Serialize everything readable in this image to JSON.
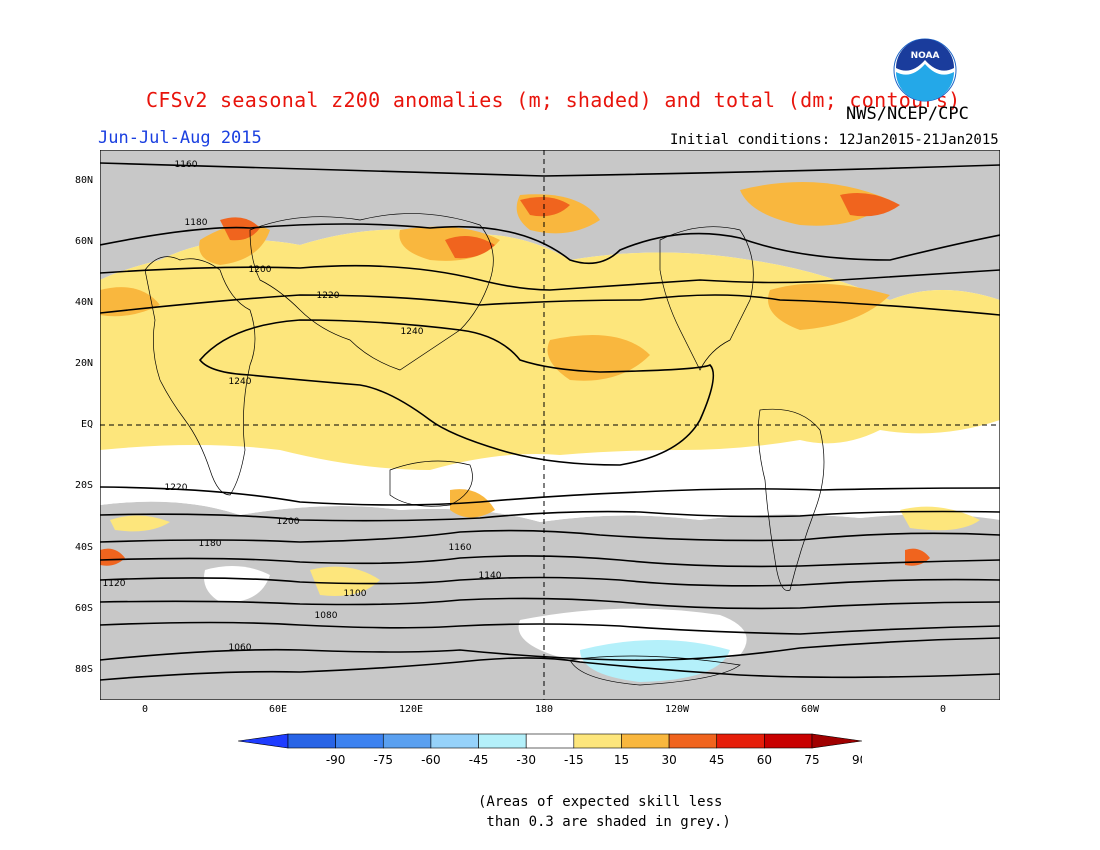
{
  "header": {
    "title": "CFSv2 seasonal z200 anomalies (m; shaded) and total (dm; contours)",
    "agency": "NWS/NCEP/CPC",
    "season": "Jun-Jul-Aug 2015",
    "initial_conditions": "Initial conditions: 12Jan2015-21Jan2015",
    "logo_icon": "noaa-logo-icon"
  },
  "map": {
    "latitude_labels": [
      "80N",
      "60N",
      "40N",
      "20N",
      "EQ",
      "20S",
      "40S",
      "60S",
      "80S"
    ],
    "longitude_labels": [
      "0",
      "60E",
      "120E",
      "180",
      "120W",
      "60W",
      "0"
    ],
    "contour_labels": [
      "1160",
      "1180",
      "1200",
      "1220",
      "1240",
      "1240",
      "1220",
      "1200",
      "1180",
      "1160",
      "1140",
      "1120",
      "1100",
      "1080",
      "1060"
    ],
    "colors": {
      "skill_grey": "#c8c8c8",
      "anom_15_30": "#fde67c",
      "anom_30_45": "#f9b73e",
      "anom_45_60": "#f0641e",
      "anom_neg_15_30": "#b4f0fa",
      "contour": "#000000"
    }
  },
  "colorbar": {
    "ticks": [
      "-90",
      "-75",
      "-60",
      "-45",
      "-30",
      "-15",
      "15",
      "30",
      "45",
      "60",
      "75",
      "90"
    ],
    "colors": [
      "#1e3cff",
      "#2864e6",
      "#3c82f0",
      "#5aa0f0",
      "#96d2fa",
      "#b4f0fa",
      "#ffffff",
      "#fde67c",
      "#f9b73e",
      "#f0641e",
      "#e61e0a",
      "#c80000",
      "#a00000"
    ]
  },
  "note": {
    "line1": "(Areas of expected skill less",
    "line2": " than 0.3 are shaded in grey.)"
  }
}
